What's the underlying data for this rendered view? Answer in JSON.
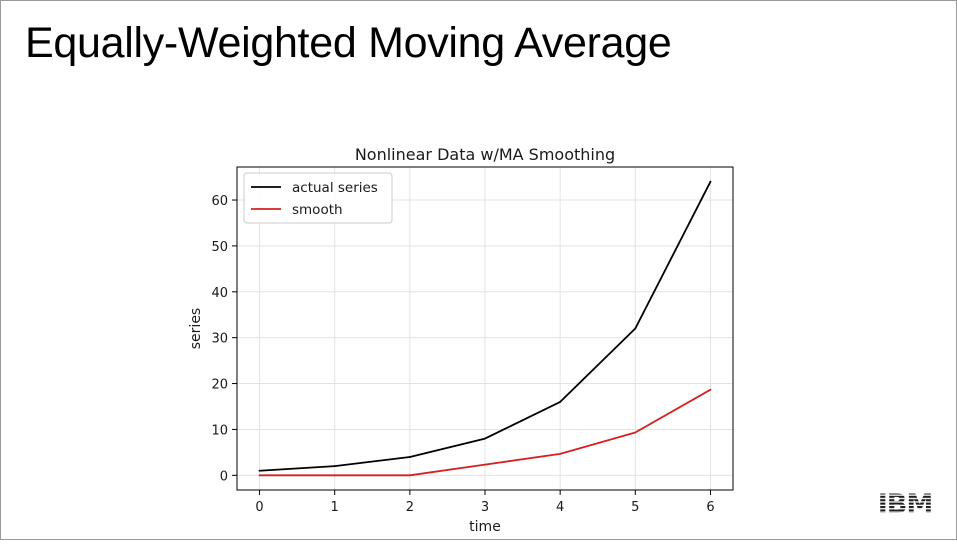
{
  "slide": {
    "title": "Equally-Weighted Moving Average",
    "logo_text": "IBM"
  },
  "chart_data": {
    "type": "line",
    "title": "Nonlinear Data w/MA Smoothing",
    "xlabel": "time",
    "ylabel": "series",
    "x": [
      0,
      1,
      2,
      3,
      4,
      5,
      6
    ],
    "xlim": [
      -0.3,
      6.3
    ],
    "ylim": [
      -3.2,
      67.2
    ],
    "xticks": [
      0,
      1,
      2,
      3,
      4,
      5,
      6
    ],
    "yticks": [
      0,
      10,
      20,
      30,
      40,
      50,
      60
    ],
    "grid": true,
    "legend_position": "top-left",
    "series": [
      {
        "name": "actual series",
        "color": "#000000",
        "values": [
          1,
          2,
          4,
          8,
          16,
          32,
          64
        ]
      },
      {
        "name": "smooth",
        "color": "#d62020",
        "values": [
          0,
          0,
          0,
          2.33,
          4.67,
          9.33,
          18.67
        ]
      }
    ]
  }
}
